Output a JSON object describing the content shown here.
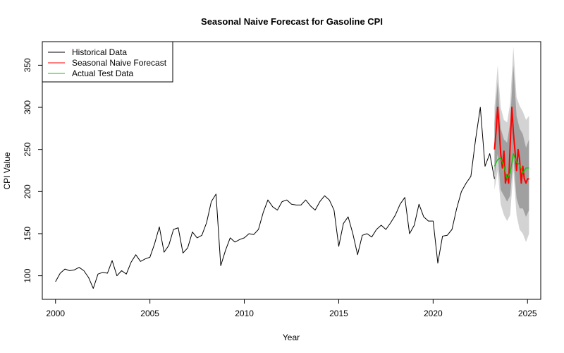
{
  "chart_data": {
    "type": "line",
    "title": "Seasonal Naive Forecast for Gasoline CPI",
    "xlabel": "Year",
    "ylabel": "CPI Value",
    "xlim": [
      1999.3,
      2025.7
    ],
    "ylim": [
      72,
      378
    ],
    "x_ticks": [
      2000,
      2005,
      2010,
      2015,
      2020,
      2025
    ],
    "y_ticks": [
      100,
      150,
      200,
      250,
      300,
      350
    ],
    "x_tick_labels": [
      "2000",
      "2005",
      "2010",
      "2015",
      "2020",
      "2025"
    ],
    "y_tick_labels": [
      "100",
      "150",
      "200",
      "250",
      "300",
      "350"
    ],
    "grid": false,
    "legend_position": "top-left",
    "legend": [
      {
        "label": "Historical Data",
        "color": "#000000"
      },
      {
        "label": "Seasonal Naive Forecast",
        "color": "#ff0000"
      },
      {
        "label": "Actual Test Data",
        "color": "#00cc00"
      }
    ],
    "series": [
      {
        "name": "Historical Data",
        "color": "#000000",
        "x": [
          2000.0,
          2000.25,
          2000.5,
          2000.75,
          2001.0,
          2001.25,
          2001.5,
          2001.75,
          2002.0,
          2002.25,
          2002.5,
          2002.75,
          2003.0,
          2003.25,
          2003.5,
          2003.75,
          2004.0,
          2004.25,
          2004.5,
          2004.75,
          2005.0,
          2005.25,
          2005.5,
          2005.75,
          2006.0,
          2006.25,
          2006.5,
          2006.75,
          2007.0,
          2007.25,
          2007.5,
          2007.75,
          2008.0,
          2008.25,
          2008.5,
          2008.75,
          2009.0,
          2009.25,
          2009.5,
          2009.75,
          2010.0,
          2010.25,
          2010.5,
          2010.75,
          2011.0,
          2011.25,
          2011.5,
          2011.75,
          2012.0,
          2012.25,
          2012.5,
          2012.75,
          2013.0,
          2013.25,
          2013.5,
          2013.75,
          2014.0,
          2014.25,
          2014.5,
          2014.75,
          2015.0,
          2015.25,
          2015.5,
          2015.75,
          2016.0,
          2016.25,
          2016.5,
          2016.75,
          2017.0,
          2017.25,
          2017.5,
          2017.75,
          2018.0,
          2018.25,
          2018.5,
          2018.75,
          2019.0,
          2019.25,
          2019.5,
          2019.75,
          2020.0,
          2020.25,
          2020.5,
          2020.75,
          2021.0,
          2021.25,
          2021.5,
          2021.75,
          2022.0,
          2022.25,
          2022.5,
          2022.75,
          2023.0,
          2023.25
        ],
        "y": [
          93,
          103,
          108,
          106,
          107,
          110,
          106,
          98,
          85,
          102,
          104,
          103,
          118,
          100,
          106,
          102,
          116,
          125,
          117,
          120,
          122,
          138,
          158,
          128,
          136,
          155,
          157,
          127,
          133,
          152,
          145,
          148,
          163,
          188,
          197,
          112,
          130,
          145,
          140,
          143,
          145,
          150,
          149,
          155,
          175,
          190,
          182,
          178,
          188,
          190,
          185,
          184,
          184,
          190,
          183,
          178,
          188,
          195,
          190,
          178,
          135,
          162,
          170,
          150,
          125,
          148,
          150,
          146,
          155,
          160,
          155,
          163,
          172,
          185,
          193,
          150,
          160,
          185,
          170,
          165,
          165,
          115,
          147,
          148,
          155,
          180,
          200,
          210,
          218,
          262,
          300,
          230,
          245,
          215
        ]
      },
      {
        "name": "Seasonal Naive Forecast",
        "color": "#ff0000",
        "x": [
          2023.25,
          2023.33,
          2023.42,
          2023.5,
          2023.58,
          2023.67,
          2023.75,
          2023.83,
          2023.92,
          2024.0,
          2024.08,
          2024.17,
          2024.25,
          2024.33,
          2024.42,
          2024.5,
          2024.58,
          2024.67,
          2024.75,
          2024.83,
          2024.92,
          2025.0,
          2025.08
        ],
        "y": [
          250,
          270,
          300,
          275,
          245,
          228,
          248,
          210,
          220,
          210,
          255,
          300,
          270,
          250,
          225,
          250,
          238,
          210,
          230,
          215,
          210,
          215,
          215
        ]
      },
      {
        "name": "Actual Test Data",
        "color": "#00cc00",
        "x": [
          2023.25,
          2023.42,
          2023.58,
          2023.75,
          2023.92,
          2024.08,
          2024.25,
          2024.42,
          2024.58,
          2024.75,
          2024.92,
          2025.08
        ],
        "y": [
          230,
          238,
          240,
          230,
          215,
          222,
          245,
          235,
          232,
          222,
          228,
          228
        ]
      }
    ],
    "forecast_interval_80": {
      "x": [
        2023.25,
        2023.42,
        2023.58,
        2023.75,
        2023.92,
        2024.08,
        2024.25,
        2024.42,
        2024.58,
        2024.75,
        2024.92,
        2025.08
      ],
      "lower": [
        218,
        245,
        202,
        195,
        188,
        195,
        240,
        192,
        180,
        180,
        170,
        178
      ],
      "upper": [
        282,
        330,
        275,
        262,
        258,
        282,
        350,
        290,
        275,
        268,
        252,
        262
      ]
    },
    "forecast_interval_95": {
      "x": [
        2023.25,
        2023.42,
        2023.58,
        2023.75,
        2023.92,
        2024.08,
        2024.25,
        2024.42,
        2024.58,
        2024.75,
        2024.92,
        2025.08
      ],
      "lower": [
        202,
        225,
        185,
        172,
        165,
        172,
        225,
        172,
        155,
        150,
        140,
        150
      ],
      "upper": [
        300,
        350,
        300,
        285,
        282,
        305,
        372,
        312,
        302,
        295,
        285,
        290
      ]
    }
  }
}
